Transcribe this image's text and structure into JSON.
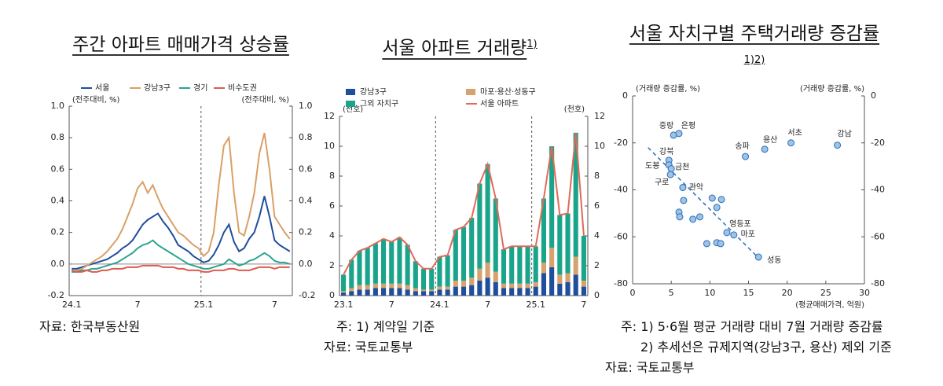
{
  "chart_data": [
    {
      "type": "line",
      "title": "주간 아파트 매매가격 상승률",
      "y_label": "(전주대비, %)",
      "y2_label": "(전주대비, %)",
      "categories": [
        "24.1",
        null,
        null,
        null,
        null,
        null,
        null,
        null,
        null,
        null,
        null,
        null,
        null,
        "7",
        null,
        null,
        null,
        null,
        null,
        null,
        null,
        null,
        null,
        null,
        null,
        null,
        "25.1",
        null,
        null,
        null,
        null,
        null,
        null,
        null,
        null,
        null,
        null,
        null,
        null,
        null,
        "7",
        null,
        null,
        null
      ],
      "series": [
        {
          "name": "서울",
          "color": "#1f4e9c",
          "values": [
            -0.03,
            -0.03,
            -0.02,
            -0.01,
            0,
            0.01,
            0.02,
            0.03,
            0.05,
            0.07,
            0.1,
            0.12,
            0.15,
            0.2,
            0.25,
            0.28,
            0.3,
            0.32,
            0.27,
            0.23,
            0.18,
            0.12,
            0.1,
            0.08,
            0.05,
            0.03,
            0.01,
            0.02,
            0.06,
            0.12,
            0.2,
            0.25,
            0.14,
            0.08,
            0.1,
            0.16,
            0.2,
            0.3,
            0.43,
            0.3,
            0.15,
            0.12,
            0.1,
            0.08
          ]
        },
        {
          "name": "강남3구",
          "color": "#d9a066",
          "values": [
            -0.05,
            -0.04,
            -0.03,
            -0.01,
            0.01,
            0.03,
            0.05,
            0.08,
            0.12,
            0.16,
            0.22,
            0.3,
            0.38,
            0.48,
            0.52,
            0.45,
            0.5,
            0.42,
            0.35,
            0.3,
            0.25,
            0.2,
            0.18,
            0.15,
            0.12,
            0.1,
            0.05,
            0.08,
            0.2,
            0.5,
            0.75,
            0.8,
            0.45,
            0.2,
            0.18,
            0.3,
            0.45,
            0.7,
            0.83,
            0.6,
            0.3,
            0.25,
            0.2,
            0.16
          ]
        },
        {
          "name": "경기",
          "color": "#2aa58f",
          "values": [
            -0.05,
            -0.05,
            -0.04,
            -0.04,
            -0.03,
            -0.03,
            -0.02,
            -0.01,
            0,
            0.01,
            0.03,
            0.05,
            0.07,
            0.1,
            0.12,
            0.13,
            0.15,
            0.12,
            0.1,
            0.08,
            0.06,
            0.04,
            0.02,
            0,
            -0.01,
            -0.02,
            -0.03,
            -0.03,
            -0.02,
            -0.01,
            0,
            0.03,
            0.01,
            -0.01,
            0,
            0.02,
            0.03,
            0.05,
            0.07,
            0.05,
            0.02,
            0.01,
            0.01,
            0
          ]
        },
        {
          "name": "비수도권",
          "color": "#e05a4e",
          "values": [
            -0.04,
            -0.05,
            -0.05,
            -0.04,
            -0.05,
            -0.05,
            -0.04,
            -0.04,
            -0.03,
            -0.03,
            -0.03,
            -0.02,
            -0.02,
            -0.02,
            -0.01,
            -0.01,
            -0.01,
            -0.01,
            -0.02,
            -0.02,
            -0.02,
            -0.03,
            -0.03,
            -0.04,
            -0.04,
            -0.04,
            -0.05,
            -0.05,
            -0.04,
            -0.04,
            -0.04,
            -0.03,
            -0.03,
            -0.04,
            -0.04,
            -0.04,
            -0.03,
            -0.02,
            -0.02,
            -0.02,
            -0.03,
            -0.02,
            -0.02,
            -0.02
          ]
        }
      ],
      "ylim": [
        -0.2,
        1.0
      ],
      "yticks": [
        -0.2,
        {
          "value": 0,
          "label": "0.0"
        },
        0.2,
        0.4,
        0.6,
        0.8,
        {
          "value": 1,
          "label": "1.0"
        }
      ],
      "y2lim": [
        -0.2,
        1.0
      ],
      "y2ticks": [
        -0.2,
        {
          "value": 0,
          "label": "0.0"
        },
        0.2,
        0.4,
        0.6,
        0.8,
        {
          "value": 1,
          "label": "1.0"
        }
      ],
      "notes": [
        "자료: 한국부동산원"
      ]
    },
    {
      "type": "bar",
      "stacked": true,
      "title": "서울 아파트 거래량",
      "title_note": "1)",
      "y_label": "(천호)",
      "y2_label": "(천호)",
      "categories": [
        "23.1",
        null,
        null,
        null,
        null,
        null,
        "7",
        null,
        null,
        null,
        null,
        null,
        "24.1",
        null,
        null,
        null,
        null,
        null,
        "7",
        null,
        null,
        null,
        null,
        null,
        "25.1",
        null,
        null,
        null,
        null,
        null,
        "7"
      ],
      "series": [
        {
          "name": "강남3구",
          "color": "#1f4e9c",
          "values": [
            0.2,
            0.3,
            0.4,
            0.4,
            0.5,
            0.5,
            0.5,
            0.5,
            0.4,
            0.3,
            0.3,
            0.3,
            0.4,
            0.4,
            0.6,
            0.6,
            0.7,
            1.0,
            1.2,
            0.9,
            0.5,
            0.5,
            0.5,
            0.5,
            0.6,
            1.5,
            1.9,
            0.8,
            0.9,
            1.4,
            0.6
          ]
        },
        {
          "name": "마포·용산·성동구",
          "color": "#d6a26e",
          "values": [
            0.1,
            0.2,
            0.3,
            0.3,
            0.3,
            0.3,
            0.3,
            0.3,
            0.3,
            0.2,
            0.1,
            0.1,
            0.2,
            0.2,
            0.4,
            0.4,
            0.5,
            0.8,
            1.0,
            0.7,
            0.3,
            0.3,
            0.3,
            0.3,
            0.3,
            0.7,
            1.3,
            0.6,
            0.6,
            1.2,
            0.4
          ]
        },
        {
          "name": "그외 자치구",
          "color": "#1aa58a",
          "values": [
            1.1,
            1.9,
            2.3,
            2.5,
            2.7,
            3.0,
            2.8,
            3.1,
            2.7,
            1.8,
            1.4,
            1.4,
            2.0,
            2.1,
            3.4,
            3.6,
            4.0,
            5.7,
            6.6,
            4.9,
            2.3,
            2.5,
            2.5,
            2.5,
            2.4,
            4.3,
            6.8,
            4.0,
            4.0,
            8.3,
            3.0
          ]
        },
        {
          "name": "서울 아파트",
          "type": "line",
          "color": "#e06a5a",
          "values": [
            1.4,
            2.4,
            3.0,
            3.2,
            3.5,
            3.8,
            3.6,
            3.9,
            3.4,
            2.3,
            1.8,
            1.8,
            2.6,
            2.7,
            4.4,
            4.6,
            5.2,
            7.5,
            8.8,
            6.5,
            3.1,
            3.3,
            3.3,
            3.3,
            3.3,
            6.5,
            10.0,
            5.4,
            5.5,
            10.9,
            4.0
          ]
        }
      ],
      "ylim": [
        0,
        12
      ],
      "yticks": [
        0,
        2,
        4,
        6,
        8,
        10,
        12
      ],
      "y2lim": [
        0,
        12
      ],
      "y2ticks": [
        0,
        2,
        4,
        6,
        8,
        10,
        12
      ],
      "notes": [
        "주: 1) 계약일 기준",
        "자료: 국토교통부"
      ]
    },
    {
      "type": "scatter",
      "title": "서울 자치구별 주택거래량 증감률",
      "title_note": "1)2)",
      "y_label": "(거래량 증감률, %)",
      "y2_label": "(거래량 증감률, %)",
      "x_label": "(평균매매가격, 억원)",
      "series": [
        {
          "color": "#9cc3e8",
          "labels": [
            "중랑",
            "은평",
            "강북",
            "도봉",
            "금천",
            "구로",
            "관악",
            "송파",
            "용산",
            "서초",
            "강남",
            "영등포",
            "마포",
            "성동",
            null,
            null,
            null,
            null,
            null,
            null,
            null,
            null,
            null,
            null,
            null
          ],
          "x": [
            5.3,
            6.0,
            4.7,
            4.7,
            5.0,
            4.9,
            6.5,
            14.6,
            17.1,
            20.5,
            26.5,
            12.2,
            13.1,
            16.3,
            10.3,
            11.5,
            10.9,
            6.6,
            6.0,
            6.1,
            7.8,
            8.7,
            9.6,
            10.9,
            11.4
          ],
          "values": [
            -16.7,
            -16.0,
            -27.4,
            -29.4,
            -31,
            -33.5,
            -39,
            -25.8,
            -22.7,
            -20,
            -21,
            -58.2,
            -59.2,
            -68.6,
            -43.5,
            -44.1,
            -47.5,
            -44.5,
            -49.5,
            -51.5,
            -52.5,
            -51.5,
            -62.9,
            -62.5,
            -62.9
          ]
        }
      ],
      "trend": {
        "x": [
          2,
          16
        ],
        "y": [
          -22,
          -68
        ]
      },
      "xlim": [
        0,
        30
      ],
      "xticks": [
        0,
        5,
        10,
        15,
        20,
        25,
        30
      ],
      "ylim": [
        -80,
        0
      ],
      "yticks": [
        -80,
        -60,
        -40,
        -20,
        0
      ],
      "y2lim": [
        -80,
        0
      ],
      "y2ticks": [
        -80,
        -60,
        -40,
        -20,
        0
      ],
      "notes": [
        "주: 1) 5·6월 평균 거래량 대비 7월 거래량 증감률",
        "2) 추세선은 규제지역(강남3구, 용산) 제외 기준",
        "자료: 국토교통부"
      ]
    }
  ]
}
